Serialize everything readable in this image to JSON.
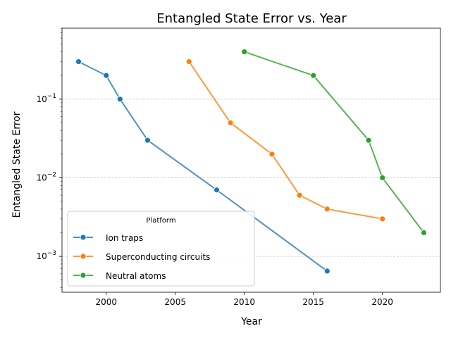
{
  "chart_data": {
    "type": "line",
    "title": "Entangled State Error vs. Year",
    "xlabel": "Year",
    "ylabel": "Entangled State Error",
    "xlim": [
      1996.8,
      2024.2
    ],
    "ylim": [
      0.00035,
      0.8
    ],
    "yscale": "log",
    "xticks": [
      2000,
      2005,
      2010,
      2015,
      2020
    ],
    "xtick_labels": [
      "2000",
      "2005",
      "2010",
      "2015",
      "2020"
    ],
    "yticks": [
      0.001,
      0.01,
      0.1
    ],
    "ytick_labels": [
      {
        "base": "10",
        "exp": "−3"
      },
      {
        "base": "10",
        "exp": "−2"
      },
      {
        "base": "10",
        "exp": "−1"
      }
    ],
    "grid": "y-major-dashed",
    "legend": {
      "title": "Platform",
      "placement": "lower-left"
    },
    "series": [
      {
        "name": "Ion traps",
        "color": "#1f77b4",
        "x": [
          1998,
          2000,
          2001,
          2003,
          2008,
          2016
        ],
        "y": [
          0.3,
          0.2,
          0.1,
          0.03,
          0.007,
          0.00065
        ]
      },
      {
        "name": "Superconducting circuits",
        "color": "#ff7f0e",
        "x": [
          2006,
          2009,
          2012,
          2014,
          2016,
          2020
        ],
        "y": [
          0.3,
          0.05,
          0.02,
          0.006,
          0.004,
          0.003
        ]
      },
      {
        "name": "Neutral atoms",
        "color": "#2ca02c",
        "x": [
          2010,
          2015,
          2019,
          2020,
          2023
        ],
        "y": [
          0.4,
          0.2,
          0.03,
          0.01,
          0.002
        ]
      }
    ]
  }
}
